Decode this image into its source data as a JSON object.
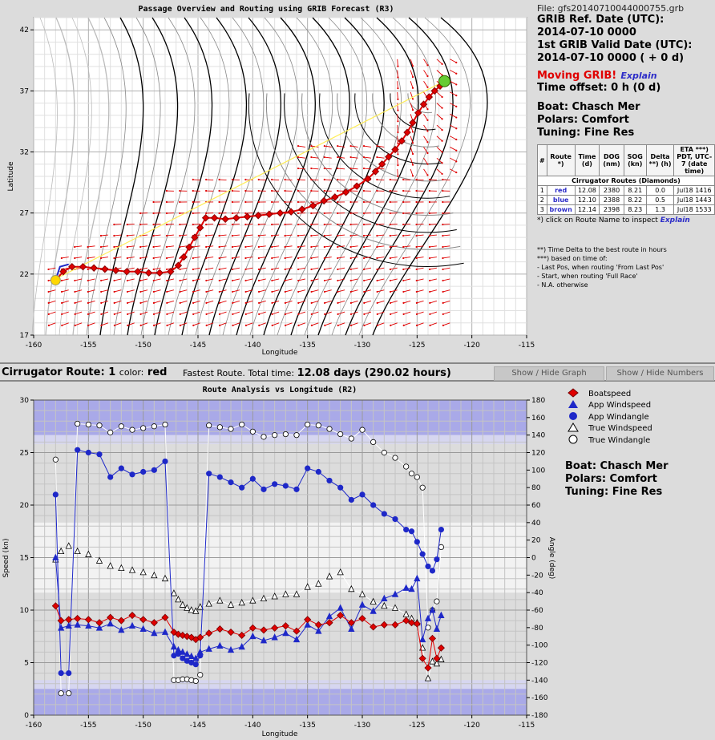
{
  "top": {
    "title": "Passage Overview and Routing using GRIB Forecast (R3)",
    "xlabel": "Longitude",
    "ylabel": "Latitude"
  },
  "info": {
    "file": "File: gfs20140710044000755.grb",
    "grib_ref_label": "GRIB Ref. Date (UTC):",
    "grib_ref_value": "2014-07-10 0000",
    "first_valid_label": "1st GRIB Valid Date (UTC):",
    "first_valid_value": "2014-07-10 0000 ( + 0 d)",
    "moving_grib": "Moving GRIB!",
    "explain": "Explain",
    "time_offset": "Time offset: 0 h (0 d)",
    "boat": "Boat:   Chasch Mer",
    "polars": "Polars: Comfort",
    "tuning": "Tuning: Fine Res",
    "table_headers": [
      "#",
      "Route *)",
      "Time (d)",
      "DOG (nm)",
      "SOG (kn)",
      "Delta **) (h)",
      "ETA ***) PDT, UTC-7 (date time)"
    ],
    "table_caption": "Cirrugator Routes (Diamonds)",
    "rows": [
      {
        "n": "1",
        "route": "red",
        "time": "12.08",
        "dog": "2380",
        "sog": "8.21",
        "delta": "0.0",
        "eta": "Jul18 1416"
      },
      {
        "n": "2",
        "route": "blue",
        "time": "12.10",
        "dog": "2388",
        "sog": "8.22",
        "delta": "0.5",
        "eta": "Jul18 1443"
      },
      {
        "n": "3",
        "route": "brown",
        "time": "12.14",
        "dog": "2398",
        "sog": "8.23",
        "delta": "1.3",
        "eta": "Jul18 1533"
      }
    ],
    "click_note": "*) click on Route Name to inspect",
    "notes": [
      "**) Time Delta to the best route in hours",
      "***) based on time of:",
      "- Last Pos, when routing 'From Last Pos'",
      "- Start, when routing 'Full Race'",
      "- N.A. otherwise"
    ]
  },
  "bar": {
    "title_prefix": "Cirrugator Route:",
    "route_num": "1",
    "color_label": "color:",
    "color_value": "red",
    "fastest": "Fastest Route. Total time:",
    "total": "12.08 days (290.02 hours)",
    "show_graph": "Show / Hide Graph",
    "show_numbers": "Show / Hide Numbers"
  },
  "bottom": {
    "title": "Route Analysis vs Longitude (R2)",
    "xlabel": "Longitude",
    "ylabel_left": "Speed (kn)",
    "ylabel_right": "Angle (deg)"
  },
  "legend": [
    "Boatspeed",
    "App Windspeed",
    "App Windangle",
    "True Windspeed",
    "True Windangle"
  ],
  "boat2": {
    "boat": "Boat:   Chasch Mer",
    "polars": "Polars: Comfort",
    "tuning": "Tuning: Fine Res"
  },
  "colors": {
    "route": "#e00000",
    "app": "#1e28c8",
    "wind_arrow": "#e00000",
    "isobar": "#000000",
    "start": "#ffd700",
    "finish": "#66cc33"
  },
  "chart_data": [
    {
      "type": "scatter",
      "title": "Passage Overview and Routing using GRIB Forecast (R3)",
      "xlabel": "Longitude",
      "ylabel": "Latitude",
      "xlim": [
        -160,
        -115
      ],
      "ylim": [
        17,
        43
      ],
      "xticks": [
        -160,
        -155,
        -150,
        -145,
        -140,
        -135,
        -130,
        -125,
        -120,
        -115
      ],
      "yticks": [
        17,
        22,
        27,
        32,
        37,
        42
      ],
      "grid": true,
      "series": [
        {
          "name": "red",
          "x": [
            -158,
            -157.3,
            -156.5,
            -155.5,
            -154.5,
            -153.5,
            -152.5,
            -151.5,
            -150.5,
            -149.5,
            -148.5,
            -147.5,
            -146.8,
            -146.3,
            -145.8,
            -145.3,
            -144.8,
            -144.3,
            -143.5,
            -142.5,
            -141.5,
            -140.5,
            -139.5,
            -138.5,
            -137.5,
            -136.5,
            -135.5,
            -134.5,
            -133.5,
            -132.5,
            -131.5,
            -130.5,
            -129.5,
            -128.8,
            -128.2,
            -127.6,
            -127,
            -126.4,
            -125.9,
            -125.4,
            -124.9,
            -124.4,
            -123.9,
            -123.4,
            -122.9,
            -122.5
          ],
          "y": [
            21.5,
            22.2,
            22.6,
            22.6,
            22.5,
            22.4,
            22.3,
            22.2,
            22.2,
            22.1,
            22.1,
            22.2,
            22.7,
            23.4,
            24.2,
            25,
            25.8,
            26.6,
            26.6,
            26.5,
            26.6,
            26.7,
            26.8,
            26.9,
            27,
            27.1,
            27.3,
            27.6,
            28,
            28.3,
            28.7,
            29.2,
            29.8,
            30.4,
            31,
            31.6,
            32.2,
            32.9,
            33.6,
            34.4,
            35.2,
            35.9,
            36.5,
            37,
            37.4,
            37.8
          ]
        }
      ]
    },
    {
      "type": "scatter",
      "title": "Route Analysis vs Longitude (R2)",
      "xlabel": "Longitude",
      "ylabel": "Speed (kn)",
      "y2label": "Angle (deg)",
      "xlim": [
        -160,
        -115
      ],
      "ylim": [
        0,
        30
      ],
      "y2lim": [
        -180,
        180
      ],
      "xticks": [
        -160,
        -155,
        -150,
        -145,
        -140,
        -135,
        -130,
        -125,
        -120,
        -115
      ],
      "yticks": [
        0,
        5,
        10,
        15,
        20,
        25,
        30
      ],
      "y2ticks": [
        -180,
        -160,
        -140,
        -120,
        -100,
        -80,
        -60,
        -40,
        -20,
        0,
        20,
        40,
        60,
        80,
        100,
        120,
        140,
        160,
        180
      ],
      "grid": true,
      "series": [
        {
          "name": "Boatspeed",
          "axis": "left",
          "x": [
            -158,
            -157.5,
            -156.8,
            -156,
            -155,
            -154,
            -153,
            -152,
            -151,
            -150,
            -149,
            -148,
            -147.2,
            -146.8,
            -146.4,
            -146,
            -145.6,
            -145.2,
            -144.8,
            -144,
            -143,
            -142,
            -141,
            -140,
            -139,
            -138,
            -137,
            -136,
            -135,
            -134,
            -133,
            -132,
            -131,
            -130,
            -129,
            -128,
            -127,
            -126,
            -125.5,
            -125,
            -124.5,
            -124,
            -123.6,
            -123.2,
            -122.8
          ],
          "y": [
            10.4,
            9,
            9.1,
            9.2,
            9.1,
            8.8,
            9.3,
            9,
            9.5,
            9.1,
            8.8,
            9.3,
            7.9,
            7.7,
            7.6,
            7.5,
            7.4,
            7.2,
            7.4,
            7.8,
            8.2,
            7.9,
            7.6,
            8.3,
            8.1,
            8.3,
            8.5,
            8,
            9.1,
            8.6,
            8.8,
            9.5,
            8.8,
            9.2,
            8.4,
            8.6,
            8.6,
            9,
            8.8,
            8.7,
            5.4,
            4.5,
            7.3,
            5.4,
            6.4
          ]
        },
        {
          "name": "App Windspeed",
          "axis": "left",
          "x": [
            -158,
            -157.5,
            -156.8,
            -156,
            -155,
            -154,
            -153,
            -152,
            -151,
            -150,
            -149,
            -148,
            -147.2,
            -146.8,
            -146.4,
            -146,
            -145.6,
            -145.2,
            -144.8,
            -144,
            -143,
            -142,
            -141,
            -140,
            -139,
            -138,
            -137,
            -136,
            -135,
            -134,
            -133,
            -132,
            -131,
            -130,
            -129,
            -128,
            -127,
            -126,
            -125.5,
            -125,
            -124.5,
            -124,
            -123.6,
            -123.2,
            -122.8
          ],
          "y": [
            15,
            8.3,
            8.5,
            8.6,
            8.5,
            8.3,
            8.7,
            8.1,
            8.5,
            8.2,
            7.8,
            7.9,
            6.5,
            6.2,
            6,
            5.8,
            5.6,
            5.4,
            6,
            6.3,
            6.6,
            6.2,
            6.5,
            7.5,
            7.1,
            7.4,
            7.8,
            7.2,
            8.6,
            8,
            9.4,
            10.2,
            8.2,
            10.5,
            9.9,
            11.1,
            11.5,
            12.1,
            12,
            13,
            7.2,
            9.2,
            10,
            8.2,
            9.5
          ]
        },
        {
          "name": "App Windangle",
          "axis": "right",
          "x": [
            -158,
            -157.5,
            -156.8,
            -156,
            -155,
            -154,
            -153,
            -152,
            -151,
            -150,
            -149,
            -148,
            -147.2,
            -146.8,
            -146.4,
            -146,
            -145.6,
            -145.2,
            -144.8,
            -144,
            -143,
            -142,
            -141,
            -140,
            -139,
            -138,
            -137,
            -136,
            -135,
            -134,
            -133,
            -132,
            -131,
            -130,
            -129,
            -128,
            -127,
            -126,
            -125.5,
            -125,
            -124.5,
            -124,
            -123.6,
            -123.2,
            -122.8
          ],
          "y": [
            72,
            -132,
            -132,
            123,
            120,
            118,
            92,
            102,
            95,
            98,
            100,
            110,
            -112,
            -110,
            -115,
            -118,
            -120,
            -122,
            -112,
            96,
            92,
            86,
            80,
            90,
            78,
            84,
            82,
            78,
            102,
            98,
            88,
            80,
            66,
            72,
            60,
            50,
            44,
            32,
            30,
            18,
            4,
            -10,
            -15,
            -2,
            32
          ]
        },
        {
          "name": "True Windspeed",
          "axis": "left",
          "x": [
            -158,
            -157.5,
            -156.8,
            -156,
            -155,
            -154,
            -153,
            -152,
            -151,
            -150,
            -149,
            -148,
            -147.2,
            -146.8,
            -146.4,
            -146,
            -145.6,
            -145.2,
            -144.8,
            -144,
            -143,
            -142,
            -141,
            -140,
            -139,
            -138,
            -137,
            -136,
            -135,
            -134,
            -133,
            -132,
            -131,
            -130,
            -129,
            -128,
            -127,
            -126,
            -125.5,
            -125,
            -124.5,
            -124,
            -123.6,
            -123.2,
            -122.8
          ],
          "y": [
            14.8,
            15.6,
            16.1,
            15.6,
            15.3,
            14.7,
            14.2,
            14,
            13.8,
            13.6,
            13.3,
            13,
            11.6,
            11,
            10.5,
            10.2,
            10,
            9.9,
            10.3,
            10.6,
            10.9,
            10.5,
            10.7,
            10.9,
            11.1,
            11.3,
            11.5,
            11.5,
            12.2,
            12.5,
            13.2,
            13.6,
            12,
            11.5,
            10.8,
            10.4,
            10.2,
            9.6,
            9.2,
            8.8,
            6.4,
            3.5,
            5.1,
            4.9,
            5.3
          ]
        },
        {
          "name": "True Windangle",
          "axis": "right",
          "x": [
            -158,
            -157.5,
            -156.8,
            -156,
            -155,
            -154,
            -153,
            -152,
            -151,
            -150,
            -149,
            -148,
            -147.2,
            -146.8,
            -146.4,
            -146,
            -145.6,
            -145.2,
            -144.8,
            -144,
            -143,
            -142,
            -141,
            -140,
            -139,
            -138,
            -137,
            -136,
            -135,
            -134,
            -133,
            -132,
            -131,
            -130,
            -129,
            -128,
            -127,
            -126,
            -125.5,
            -125,
            -124.5,
            -124,
            -123.6,
            -123.2,
            -122.8
          ],
          "y": [
            112,
            -155,
            -155,
            153,
            152,
            151,
            143,
            150,
            146,
            148,
            150,
            152,
            -140,
            -140,
            -139,
            -139,
            -140,
            -141,
            -134,
            151,
            149,
            147,
            152,
            144,
            138,
            140,
            141,
            140,
            152,
            151,
            147,
            141,
            136,
            146,
            132,
            120,
            114,
            104,
            96,
            92,
            80,
            -80,
            -60,
            -50,
            12
          ]
        }
      ]
    }
  ]
}
